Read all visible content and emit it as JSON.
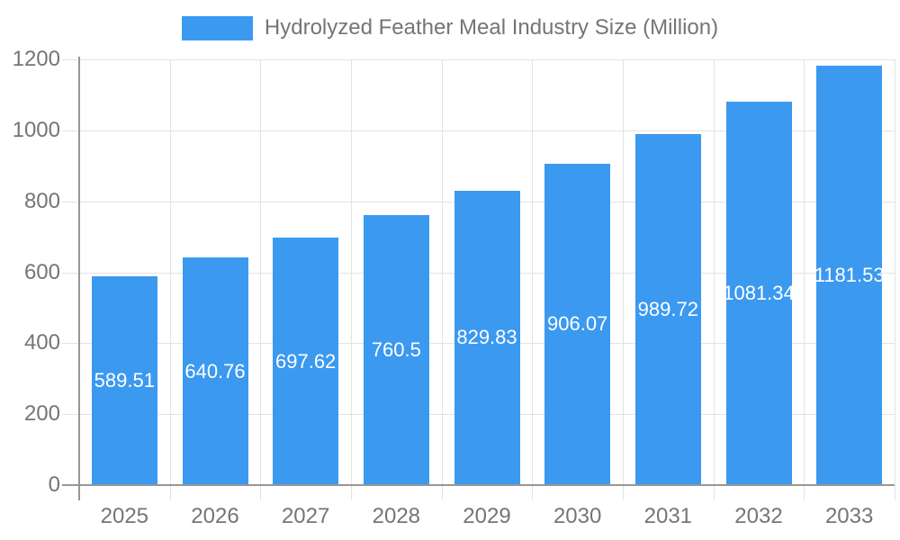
{
  "legend": {
    "label": "Hydrolyzed Feather Meal Industry Size (Million)"
  },
  "chart_data": {
    "type": "bar",
    "title": "Hydrolyzed Feather Meal Industry Size (Million)",
    "categories": [
      "2025",
      "2026",
      "2027",
      "2028",
      "2029",
      "2030",
      "2031",
      "2032",
      "2033"
    ],
    "values": [
      589.51,
      640.76,
      697.62,
      760.5,
      829.83,
      906.07,
      989.72,
      1081.34,
      1181.53
    ],
    "value_labels": [
      "589.51",
      "640.76",
      "697.62",
      "760.5",
      "829.83",
      "906.07",
      "989.72",
      "1081.34",
      "1181.53"
    ],
    "xlabel": "",
    "ylabel": "",
    "ylim": [
      0,
      1200
    ],
    "yticks": [
      0,
      200,
      400,
      600,
      800,
      1000,
      1200
    ],
    "grid": true,
    "legend_position": "top",
    "colors": {
      "bar": "#3b99f0",
      "bar_value_text": "#ffffff",
      "axis_text": "#757575",
      "grid_line": "#e3e3e3",
      "axis_line": "#969696"
    }
  }
}
